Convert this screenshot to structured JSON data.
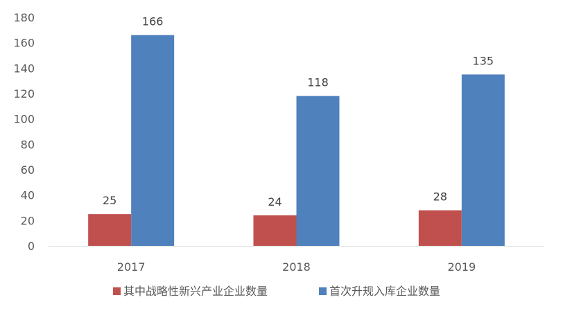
{
  "chart_data": {
    "type": "bar",
    "categories": [
      "2017",
      "2018",
      "2019"
    ],
    "series": [
      {
        "name": "其中战略性新兴产业企业数量",
        "values": [
          25,
          24,
          28
        ],
        "color": "#c0504d"
      },
      {
        "name": "首次升规入库企业数量",
        "values": [
          166,
          118,
          135
        ],
        "color": "#4f81bd"
      }
    ],
    "ylim": [
      0,
      180
    ],
    "yticks": [
      0,
      20,
      40,
      60,
      80,
      100,
      120,
      140,
      160,
      180
    ],
    "grid": false,
    "legend_position": "bottom",
    "data_labels": true
  }
}
